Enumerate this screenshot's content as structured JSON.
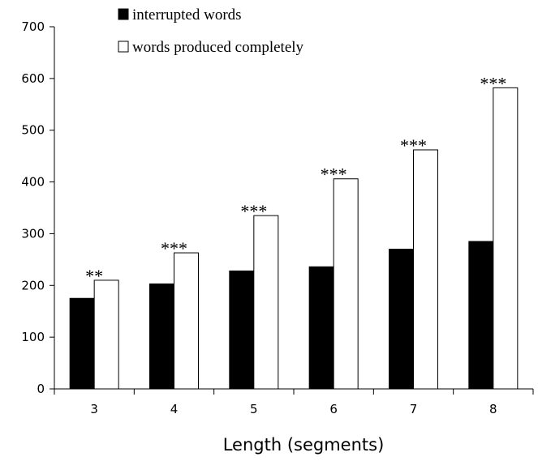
{
  "chart_data": {
    "type": "bar",
    "title": "",
    "xlabel": "Length (segments)",
    "ylabel": "",
    "categories": [
      "3",
      "4",
      "5",
      "6",
      "7",
      "8"
    ],
    "ylim": [
      0,
      700
    ],
    "yticks": [
      0,
      100,
      200,
      300,
      400,
      500,
      600,
      700
    ],
    "grid": false,
    "legend_placement": "top-left",
    "series": [
      {
        "name": "interrupted words",
        "values": [
          175,
          203,
          228,
          236,
          270,
          285
        ],
        "color": "#000000"
      },
      {
        "name": "words produced completely",
        "values": [
          210,
          263,
          335,
          406,
          462,
          582
        ],
        "color": "#ffffff"
      }
    ],
    "annotations": [
      "**",
      "***",
      "***",
      "***",
      "***",
      "***"
    ]
  }
}
